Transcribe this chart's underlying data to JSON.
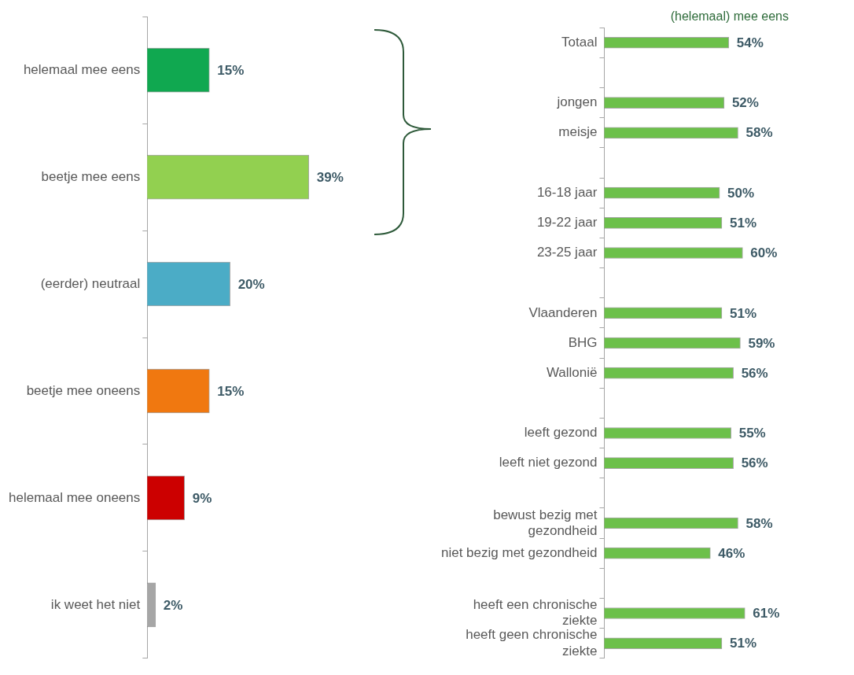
{
  "chart_data": [
    {
      "type": "bar",
      "orientation": "horizontal",
      "categories": [
        "helemaal mee eens",
        "beetje mee eens",
        "(eerder) neutraal",
        "beetje mee oneens",
        "helemaal mee oneens",
        "ik weet het niet"
      ],
      "values": [
        15,
        39,
        20,
        15,
        9,
        2
      ],
      "colors": [
        "#10a850",
        "#92d050",
        "#4bacc6",
        "#f07810",
        "#cc0000",
        "#a6a6a6"
      ],
      "value_labels": [
        "15%",
        "39%",
        "20%",
        "15%",
        "9%",
        "2%"
      ],
      "tick_labels": "y",
      "grid": false,
      "legend": false
    },
    {
      "type": "bar",
      "orientation": "horizontal",
      "title": "(helemaal) mee eens",
      "categories": [
        "Totaal",
        null,
        "jongen",
        "meisje",
        null,
        "16-18 jaar",
        "19-22 jaar",
        "23-25 jaar",
        null,
        "Vlaanderen",
        "BHG",
        "Wallonië",
        null,
        "leeft gezond",
        "leeft niet gezond",
        null,
        "bewust bezig met gezondheid",
        "niet bezig met gezondheid",
        null,
        "heeft een chronische ziekte",
        "heeft geen chronische ziekte"
      ],
      "values": [
        54,
        null,
        52,
        58,
        null,
        50,
        51,
        60,
        null,
        51,
        59,
        56,
        null,
        55,
        56,
        null,
        58,
        46,
        null,
        61,
        51
      ],
      "color": "#6cc04a",
      "value_labels": [
        "54%",
        null,
        "52%",
        "58%",
        null,
        "50%",
        "51%",
        "60%",
        null,
        "51%",
        "59%",
        "56%",
        null,
        "55%",
        "56%",
        null,
        "58%",
        "46%",
        null,
        "61%",
        "51%"
      ],
      "tick_labels": "y",
      "grid": false,
      "legend": false
    }
  ]
}
